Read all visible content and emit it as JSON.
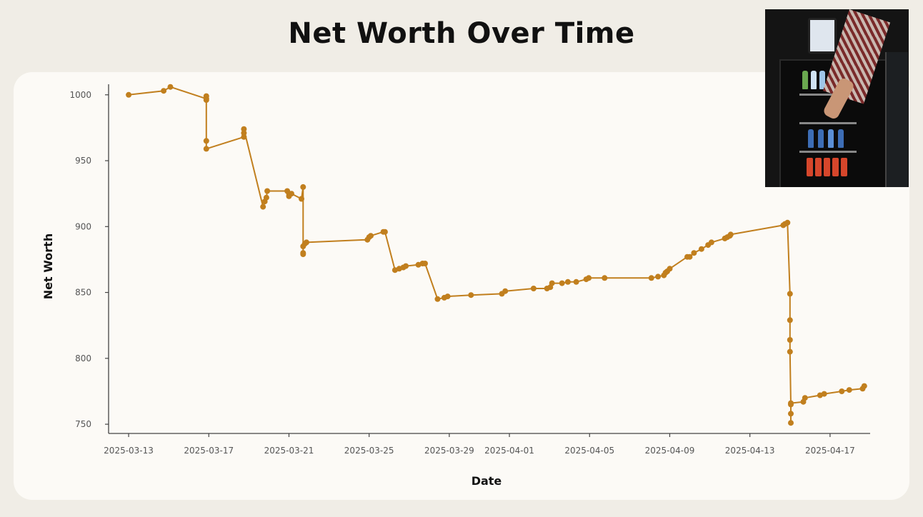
{
  "colors": {
    "line": "#c17f1e",
    "axis": "#444444",
    "tick_text": "#555555",
    "card": "#fcfaf6",
    "background": "#f0ede6"
  },
  "photo": {
    "description_icon": "vending-fridge-photo"
  },
  "chart_data": {
    "type": "line",
    "title": "Net Worth Over Time",
    "xlabel": "Date",
    "ylabel": "Net Worth",
    "xlim": [
      "2025-03-12",
      "2025-04-19"
    ],
    "ylim": [
      743,
      1008
    ],
    "grid": false,
    "x_ticks": [
      "2025-03-13",
      "2025-03-17",
      "2025-03-21",
      "2025-03-25",
      "2025-03-29",
      "2025-04-01",
      "2025-04-05",
      "2025-04-09",
      "2025-04-13",
      "2025-04-17"
    ],
    "y_ticks": [
      750,
      800,
      850,
      900,
      950,
      1000
    ],
    "series": [
      {
        "x": [
          "2025-03-13 00:00",
          "2025-03-14 18:00",
          "2025-03-15 02:00",
          "2025-03-16 21:00",
          "2025-03-16 21:00",
          "2025-03-16 21:00",
          "2025-03-16 21:00",
          "2025-03-16 21:00",
          "2025-03-18 18:00",
          "2025-03-18 18:00",
          "2025-03-18 18:00",
          "2025-03-19 17:00",
          "2025-03-19 19:00",
          "2025-03-19 21:00",
          "2025-03-19 22:00",
          "2025-03-20 22:00",
          "2025-03-21 00:00",
          "2025-03-21 00:00",
          "2025-03-21 03:00",
          "2025-03-21 15:00",
          "2025-03-21 17:00",
          "2025-03-21 17:00",
          "2025-03-21 17:00",
          "2025-03-21 17:00",
          "2025-03-21 19:00",
          "2025-03-21 21:00",
          "2025-03-24 22:00",
          "2025-03-25 00:00",
          "2025-03-25 02:00",
          "2025-03-25 17:00",
          "2025-03-25 19:00",
          "2025-03-26 07:00",
          "2025-03-26 12:00",
          "2025-03-26 17:00",
          "2025-03-26 20:00",
          "2025-03-27 11:00",
          "2025-03-27 16:00",
          "2025-03-27 19:00",
          "2025-03-28 10:00",
          "2025-03-28 18:00",
          "2025-03-28 22:00",
          "2025-03-30 02:00",
          "2025-03-31 15:00",
          "2025-03-31 19:00",
          "2025-04-02 05:00",
          "2025-04-02 21:00",
          "2025-04-03 01:00",
          "2025-04-03 03:00",
          "2025-04-03 15:00",
          "2025-04-03 22:00",
          "2025-04-04 08:00",
          "2025-04-04 20:00",
          "2025-04-04 23:00",
          "2025-04-05 18:00",
          "2025-04-08 02:00",
          "2025-04-08 10:00",
          "2025-04-08 17:00",
          "2025-04-08 19:00",
          "2025-04-08 21:00",
          "2025-04-09 00:00",
          "2025-04-09 21:00",
          "2025-04-10 00:00",
          "2025-04-10 05:00",
          "2025-04-10 14:00",
          "2025-04-10 22:00",
          "2025-04-11 02:00",
          "2025-04-11 18:00",
          "2025-04-11 21:00",
          "2025-04-12 00:00",
          "2025-04-12 01:00",
          "2025-04-14 16:00",
          "2025-04-14 18:00",
          "2025-04-14 21:00",
          "2025-04-15 00:00",
          "2025-04-15 00:00",
          "2025-04-15 00:00",
          "2025-04-15 00:00",
          "2025-04-15 01:00",
          "2025-04-15 01:00",
          "2025-04-15 01:00",
          "2025-04-15 01:00",
          "2025-04-15 16:00",
          "2025-04-15 18:00",
          "2025-04-16 12:00",
          "2025-04-16 17:00",
          "2025-04-17 14:00",
          "2025-04-17 23:00",
          "2025-04-18 15:00",
          "2025-04-18 17:00"
        ],
        "y": [
          1000,
          1003,
          1006,
          997,
          999,
          996,
          965,
          959,
          968,
          971,
          974,
          915,
          919,
          922,
          927,
          927,
          925,
          923,
          925,
          921,
          930,
          880,
          879,
          885,
          887,
          888,
          890,
          892,
          893,
          896,
          896,
          867,
          868,
          869,
          870,
          871,
          872,
          872,
          845,
          846,
          847,
          848,
          849,
          851,
          853,
          853,
          854,
          857,
          857,
          858,
          858,
          860,
          861,
          861,
          861,
          862,
          863,
          865,
          866,
          868,
          877,
          877,
          880,
          883,
          886,
          888,
          891,
          892,
          893,
          894,
          901,
          902,
          903,
          849,
          829,
          814,
          805,
          765,
          758,
          751,
          766,
          767,
          770,
          772,
          773,
          775,
          776,
          777,
          779
        ]
      }
    ]
  }
}
